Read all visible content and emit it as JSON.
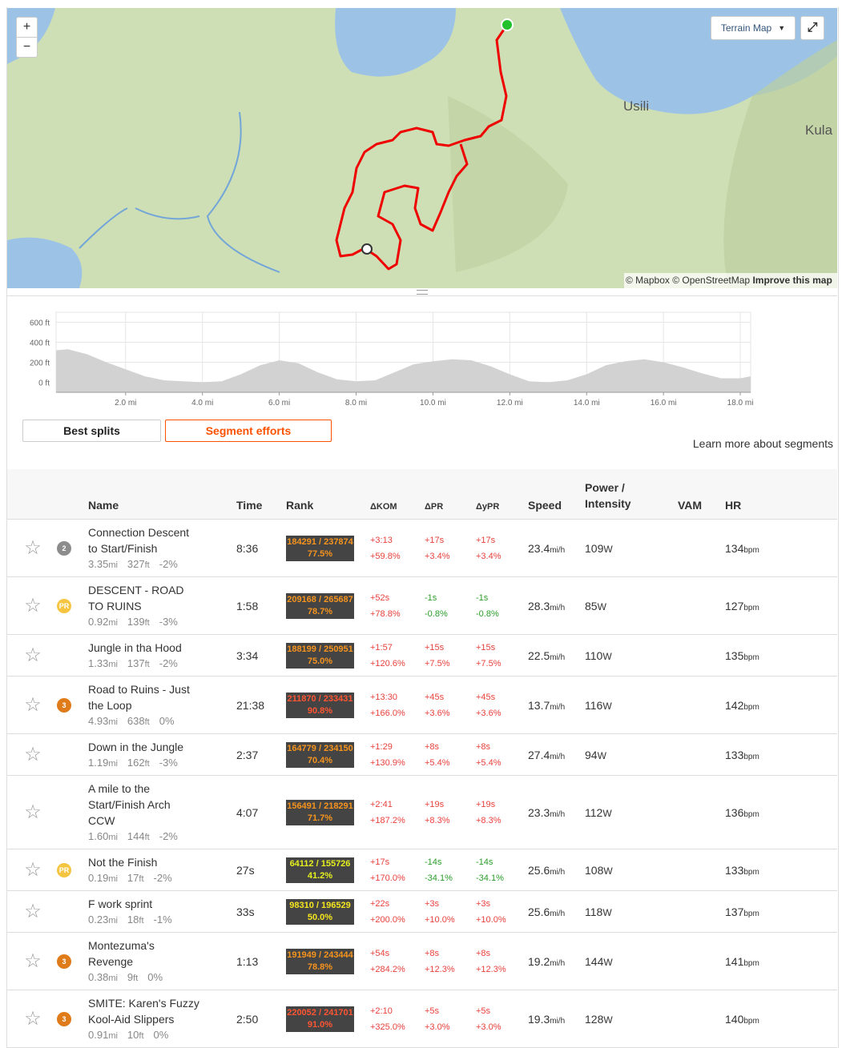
{
  "map": {
    "zoom_in": "+",
    "zoom_out": "−",
    "layer": "Terrain Map",
    "places": [
      "Usili",
      "Kula"
    ],
    "attribution": "© Mapbox © OpenStreetMap",
    "improve": "Improve this map"
  },
  "elevation": {
    "type": "area",
    "color": "#d2d2d2",
    "x": [
      0.19,
      0.5,
      1,
      1.5,
      2,
      2.5,
      3,
      3.5,
      4,
      4.5,
      5,
      5.5,
      6,
      6.5,
      7,
      7.5,
      8,
      8.5,
      9,
      9.5,
      10,
      10.5,
      11,
      11.5,
      12,
      12.5,
      13,
      13.5,
      14,
      14.5,
      15,
      15.5,
      16,
      16.5,
      17,
      17.5,
      18,
      18.27
    ],
    "values": [
      320,
      330,
      280,
      200,
      130,
      60,
      20,
      10,
      0,
      10,
      80,
      170,
      220,
      190,
      100,
      30,
      10,
      20,
      100,
      180,
      210,
      230,
      220,
      160,
      80,
      10,
      0,
      20,
      80,
      170,
      210,
      230,
      200,
      150,
      90,
      40,
      40,
      60
    ],
    "xlim": [
      0.19,
      18.27
    ],
    "ylim": [
      -100,
      700
    ],
    "xticks": [
      {
        "value": 2,
        "label": "2.0 mi"
      },
      {
        "value": 4,
        "label": "4.0 mi"
      },
      {
        "value": 6,
        "label": "6.0 mi"
      },
      {
        "value": 8,
        "label": "8.0 mi"
      },
      {
        "value": 10,
        "label": "10.0 mi"
      },
      {
        "value": 12,
        "label": "12.0 mi"
      },
      {
        "value": 14,
        "label": "14.0 mi"
      },
      {
        "value": 16,
        "label": "16.0 mi"
      },
      {
        "value": 18,
        "label": "18.0 mi"
      }
    ],
    "yticks": [
      {
        "value": 0,
        "label": "0 ft"
      },
      {
        "value": 200,
        "label": "200 ft"
      },
      {
        "value": 400,
        "label": "400 ft"
      },
      {
        "value": 600,
        "label": "600 ft"
      }
    ],
    "grid": true
  },
  "tabs": [
    "Best splits",
    "Segment efforts"
  ],
  "active_tab": 1,
  "learn_more": "Learn more about segments",
  "units": {
    "dist": "mi",
    "elev": "ft",
    "speed": "mi/h",
    "power": "W",
    "hr": "bpm"
  },
  "table": {
    "headers": [
      "Name",
      "Time",
      "Rank",
      "ΔKOM",
      "ΔPR",
      "ΔyPR",
      "Speed",
      "Power / Intensity",
      "VAM",
      "HR"
    ],
    "rows": [
      {
        "medal": {
          "label": "2",
          "color": "#8c8c8c"
        },
        "name": "Connection Descent to Start/Finish",
        "distance": "3.35",
        "elev": "327",
        "grade": "-2%",
        "time": "8:36",
        "rank": "184291 / 237874",
        "rank_pct": "77.5%",
        "rank_color": "#f7941d",
        "dkom": [
          "+3:13",
          "+59.8%"
        ],
        "dpr": [
          "+17s",
          "+3.4%"
        ],
        "dypr": [
          "+17s",
          "+3.4%"
        ],
        "speed": "23.4",
        "power": "109",
        "hr": "134"
      },
      {
        "medal": {
          "label": "PR",
          "color": "#f5c542"
        },
        "name": "DESCENT - ROAD TO RUINS",
        "distance": "0.92",
        "elev": "139",
        "grade": "-3%",
        "time": "1:58",
        "rank": "209168 / 265687",
        "rank_pct": "78.7%",
        "rank_color": "#f7941d",
        "dkom": [
          "+52s",
          "+78.8%"
        ],
        "dpr": [
          "-1s",
          "-0.8%"
        ],
        "dypr": [
          "-1s",
          "-0.8%"
        ],
        "speed": "28.3",
        "power": "85",
        "hr": "127"
      },
      {
        "medal": null,
        "name": "Jungle in tha Hood",
        "distance": "1.33",
        "elev": "137",
        "grade": "-2%",
        "time": "3:34",
        "rank": "188199 / 250951",
        "rank_pct": "75.0%",
        "rank_color": "#f7941d",
        "dkom": [
          "+1:57",
          "+120.6%"
        ],
        "dpr": [
          "+15s",
          "+7.5%"
        ],
        "dypr": [
          "+15s",
          "+7.5%"
        ],
        "speed": "22.5",
        "power": "110",
        "hr": "135"
      },
      {
        "medal": {
          "label": "3",
          "color": "#e07b1a"
        },
        "name": "Road to Ruins - Just the Loop",
        "distance": "4.93",
        "elev": "638",
        "grade": "0%",
        "time": "21:38",
        "rank": "211870 / 233431",
        "rank_pct": "90.8%",
        "rank_color": "#ff5533",
        "dkom": [
          "+13:30",
          "+166.0%"
        ],
        "dpr": [
          "+45s",
          "+3.6%"
        ],
        "dypr": [
          "+45s",
          "+3.6%"
        ],
        "speed": "13.7",
        "power": "116",
        "hr": "142"
      },
      {
        "medal": null,
        "name": "Down in the Jungle",
        "distance": "1.19",
        "elev": "162",
        "grade": "-3%",
        "time": "2:37",
        "rank": "164779 / 234150",
        "rank_pct": "70.4%",
        "rank_color": "#f7941d",
        "dkom": [
          "+1:29",
          "+130.9%"
        ],
        "dpr": [
          "+8s",
          "+5.4%"
        ],
        "dypr": [
          "+8s",
          "+5.4%"
        ],
        "speed": "27.4",
        "power": "94",
        "hr": "133"
      },
      {
        "medal": null,
        "name": "A mile to the Start/Finish Arch CCW",
        "distance": "1.60",
        "elev": "144",
        "grade": "-2%",
        "time": "4:07",
        "rank": "156491 / 218291",
        "rank_pct": "71.7%",
        "rank_color": "#f7941d",
        "dkom": [
          "+2:41",
          "+187.2%"
        ],
        "dpr": [
          "+19s",
          "+8.3%"
        ],
        "dypr": [
          "+19s",
          "+8.3%"
        ],
        "speed": "23.3",
        "power": "112",
        "hr": "136"
      },
      {
        "medal": {
          "label": "PR",
          "color": "#f5c542"
        },
        "name": "Not the Finish",
        "distance": "0.19",
        "elev": "17",
        "grade": "-2%",
        "time": "27s",
        "rank": "64112 / 155726",
        "rank_pct": "41.2%",
        "rank_color": "#e6f01e",
        "dkom": [
          "+17s",
          "+170.0%"
        ],
        "dpr": [
          "-14s",
          "-34.1%"
        ],
        "dypr": [
          "-14s",
          "-34.1%"
        ],
        "speed": "25.6",
        "power": "108",
        "hr": "133"
      },
      {
        "medal": null,
        "name": "F work sprint",
        "distance": "0.23",
        "elev": "18",
        "grade": "-1%",
        "time": "33s",
        "rank": "98310 / 196529",
        "rank_pct": "50.0%",
        "rank_color": "#f5e61e",
        "dkom": [
          "+22s",
          "+200.0%"
        ],
        "dpr": [
          "+3s",
          "+10.0%"
        ],
        "dypr": [
          "+3s",
          "+10.0%"
        ],
        "speed": "25.6",
        "power": "118",
        "hr": "137"
      },
      {
        "medal": {
          "label": "3",
          "color": "#e07b1a"
        },
        "name": "Montezuma's Revenge",
        "distance": "0.38",
        "elev": "9",
        "grade": "0%",
        "time": "1:13",
        "rank": "191949 / 243444",
        "rank_pct": "78.8%",
        "rank_color": "#f7941d",
        "dkom": [
          "+54s",
          "+284.2%"
        ],
        "dpr": [
          "+8s",
          "+12.3%"
        ],
        "dypr": [
          "+8s",
          "+12.3%"
        ],
        "speed": "19.2",
        "power": "144",
        "hr": "141"
      },
      {
        "medal": {
          "label": "3",
          "color": "#e07b1a"
        },
        "name": "SMITE: Karen's Fuzzy Kool-Aid Slippers",
        "distance": "0.91",
        "elev": "10",
        "grade": "0%",
        "time": "2:50",
        "rank": "220052 / 241701",
        "rank_pct": "91.0%",
        "rank_color": "#ff5533",
        "dkom": [
          "+2:10",
          "+325.0%"
        ],
        "dpr": [
          "+5s",
          "+3.0%"
        ],
        "dypr": [
          "+5s",
          "+3.0%"
        ],
        "speed": "19.3",
        "power": "128",
        "hr": "140"
      }
    ]
  }
}
